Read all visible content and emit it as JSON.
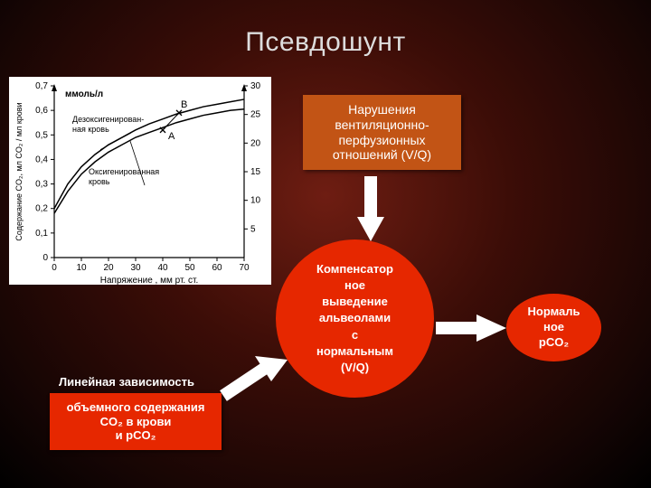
{
  "slide_title": "Псевдошунт",
  "box_top": "Нарушения вентиляционно-перфузионных отношений (V/Q)",
  "label_left": "Линейная зависимость",
  "box_bottom_html": "объемного содержания CO₂ в крови<br>и pCO₂",
  "circle_big_html": "Компенсатор<br>ное<br>выведение<br>альвеолами<br>с<br>нормальным<br>(V/Q)",
  "circle_small_html": "Нормаль<br>ное<br>pCO₂",
  "chart": {
    "title_y_left": "Содержание CO₂, мл CO₂ / мл крови",
    "unit_left_top": "ммоль/л",
    "xlabel": "Напряжение          , мм рт. ст.",
    "curve_label_top": "Дезоксигенирован-\nная кровь",
    "curve_label_bottom": "Оксигенированная\nкровь",
    "point_A": "A",
    "point_B": "B",
    "x_ticks": [
      0,
      10,
      20,
      30,
      40,
      50,
      60,
      70
    ],
    "y_left_ticks": [
      0,
      0.1,
      0.2,
      0.3,
      0.4,
      0.5,
      0.6,
      0.7
    ],
    "y_right_ticks": [
      5,
      10,
      15,
      20,
      25,
      30
    ],
    "deoxy_curve": [
      [
        0,
        0.2
      ],
      [
        5,
        0.3
      ],
      [
        10,
        0.37
      ],
      [
        15,
        0.42
      ],
      [
        20,
        0.46
      ],
      [
        25,
        0.49
      ],
      [
        30,
        0.52
      ],
      [
        35,
        0.545
      ],
      [
        40,
        0.565
      ],
      [
        45,
        0.585
      ],
      [
        50,
        0.6
      ],
      [
        55,
        0.615
      ],
      [
        60,
        0.625
      ],
      [
        65,
        0.635
      ],
      [
        70,
        0.645
      ]
    ],
    "oxy_curve": [
      [
        0,
        0.18
      ],
      [
        5,
        0.27
      ],
      [
        10,
        0.34
      ],
      [
        15,
        0.39
      ],
      [
        20,
        0.43
      ],
      [
        25,
        0.46
      ],
      [
        30,
        0.49
      ],
      [
        35,
        0.51
      ],
      [
        40,
        0.53
      ],
      [
        45,
        0.55
      ],
      [
        50,
        0.565
      ],
      [
        55,
        0.58
      ],
      [
        60,
        0.59
      ],
      [
        65,
        0.6
      ],
      [
        70,
        0.605
      ]
    ],
    "ptA": [
      40,
      0.52
    ],
    "ptB": [
      46,
      0.59
    ],
    "colors": {
      "bg": "#ffffff",
      "axis": "#000000",
      "curve": "#000000",
      "text": "#000000"
    },
    "font_size_tick": 10,
    "font_size_label": 10
  },
  "arrow_color": "#ffffff"
}
